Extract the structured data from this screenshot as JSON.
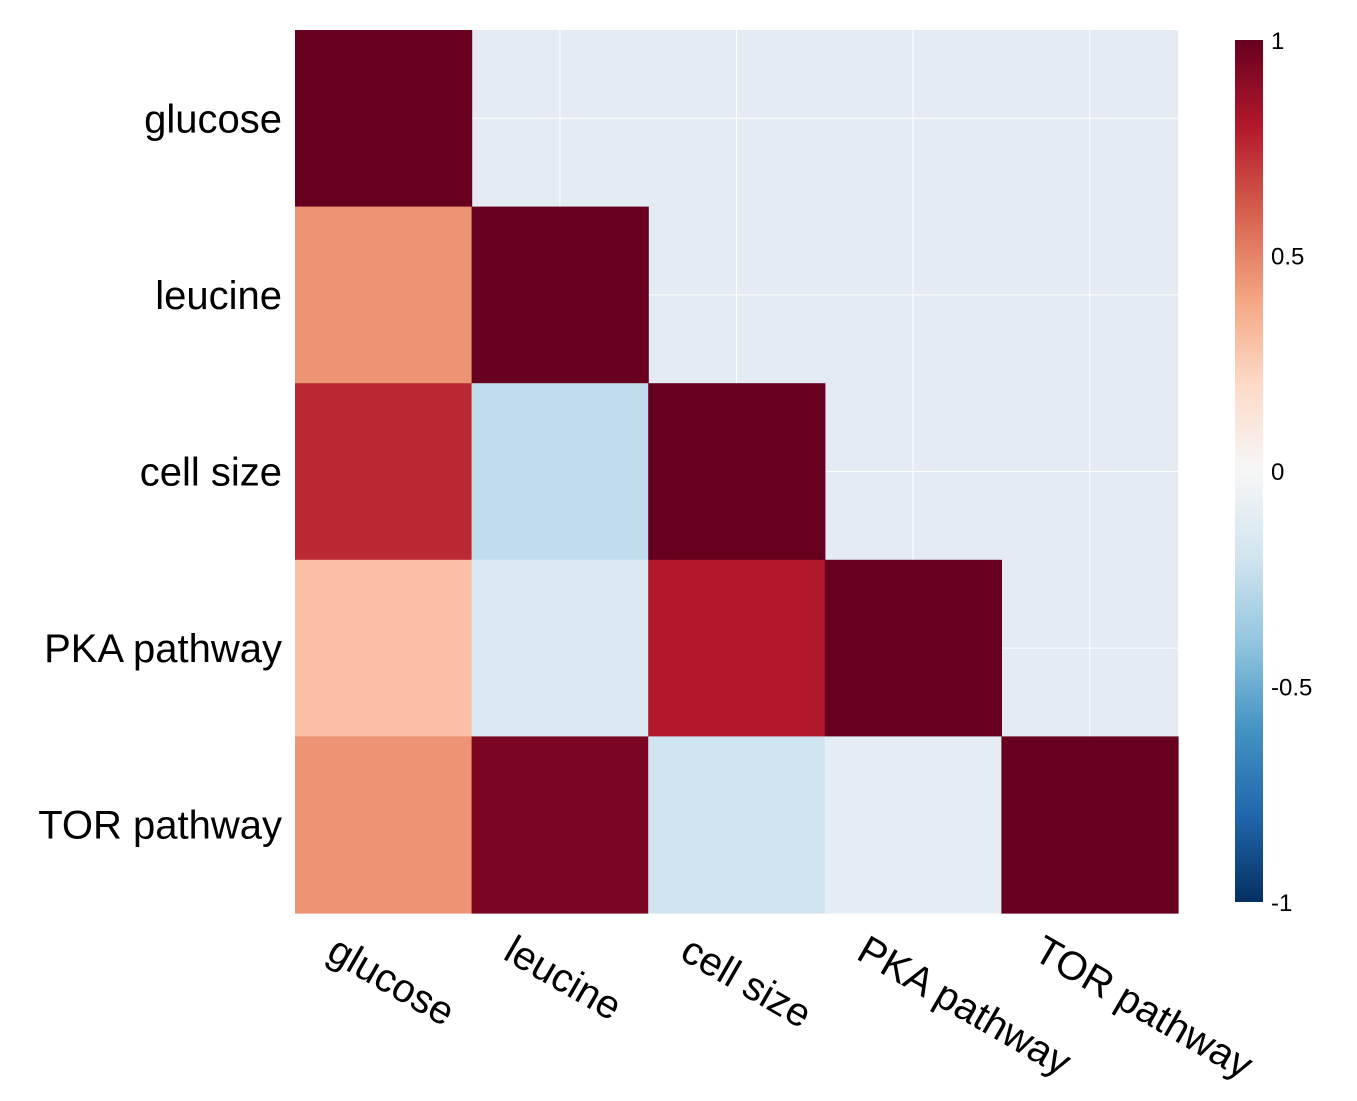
{
  "chart_data": {
    "type": "heatmap",
    "title": "",
    "xlabel": "",
    "ylabel": "",
    "rows": [
      "glucose",
      "leucine",
      "cell size",
      "PKA pathway",
      "TOR pathway"
    ],
    "columns": [
      "glucose",
      "leucine",
      "cell size",
      "PKA pathway",
      "TOR pathway"
    ],
    "values": [
      [
        1.0,
        null,
        null,
        null,
        null
      ],
      [
        0.45,
        1.0,
        null,
        null,
        null
      ],
      [
        0.75,
        -0.25,
        1.0,
        null,
        null
      ],
      [
        0.3,
        -0.15,
        0.8,
        1.0,
        null
      ],
      [
        0.45,
        0.95,
        -0.2,
        -0.1,
        1.0
      ]
    ],
    "colorscale": {
      "name": "RdBu",
      "range": [
        -1,
        1
      ],
      "stops": [
        "#053061",
        "#2166ac",
        "#4393c3",
        "#92c5de",
        "#d1e5f0",
        "#f7f7f7",
        "#fddbc7",
        "#f4a582",
        "#d6604d",
        "#b2182b",
        "#67001f"
      ],
      "tick_values": [
        1,
        0.5,
        0,
        -0.5,
        -1
      ],
      "tick_labels": [
        "1",
        "0.5",
        "0",
        "-0.5",
        "-1"
      ]
    },
    "empty_cell_color": "#e5ebf5",
    "grid": true,
    "legend_position": "right"
  }
}
